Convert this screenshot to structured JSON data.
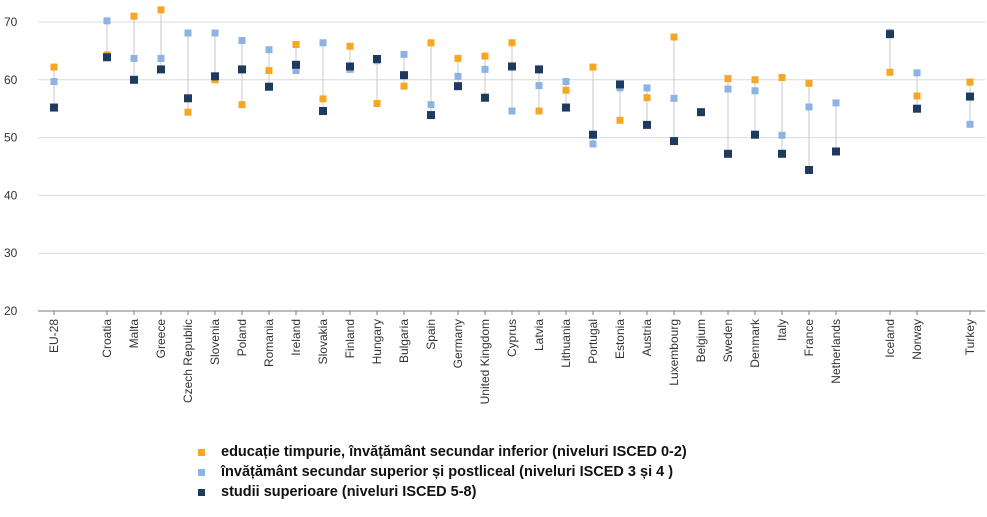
{
  "chart_data": {
    "type": "scatter",
    "categories": [
      "EU-28",
      "Croatia",
      "Malta",
      "Greece",
      "Czech Republic",
      "Slovenia",
      "Poland",
      "Romania",
      "Ireland",
      "Slovakia",
      "Finland",
      "Hungary",
      "Bulgaria",
      "Spain",
      "Germany",
      "United Kingdom",
      "Cyprus",
      "Latvia",
      "Lithuania",
      "Portugal",
      "Estonia",
      "Austria",
      "Luxembourg",
      "Belgium",
      "Sweden",
      "Denmark",
      "Italy",
      "France",
      "Netherlands",
      "Iceland",
      "Norway",
      "Turkey"
    ],
    "series": [
      {
        "name": "educație timpurie, învățământ secundar inferior (niveluri ISCED 0-2)",
        "color": "#f5a623",
        "values": [
          62.2,
          64.3,
          71.0,
          72.1,
          54.4,
          60.0,
          55.7,
          61.6,
          66.1,
          56.7,
          65.8,
          55.9,
          58.9,
          66.4,
          63.7,
          64.1,
          66.4,
          54.6,
          58.2,
          62.2,
          53.0,
          56.9,
          67.4,
          null,
          60.2,
          60.0,
          60.4,
          59.4,
          null,
          61.3,
          57.2,
          59.6
        ]
      },
      {
        "name": "învățământ secundar superior și postliceal (niveluri ISCED 3 și 4 )",
        "color": "#8db3e2",
        "values": [
          59.7,
          70.2,
          63.7,
          63.7,
          68.1,
          68.1,
          66.8,
          65.2,
          61.6,
          66.4,
          61.8,
          63.3,
          64.4,
          55.7,
          60.6,
          61.8,
          54.6,
          59.0,
          59.7,
          48.9,
          58.6,
          58.6,
          56.8,
          54.4,
          58.4,
          58.1,
          50.4,
          55.3,
          56.0,
          68.2,
          61.2,
          52.3
        ]
      },
      {
        "name": "studii superioare (niveluri ISCED 5-8)",
        "color": "#1f3a5f",
        "values": [
          55.2,
          63.9,
          60.0,
          61.8,
          56.8,
          60.6,
          61.8,
          58.8,
          62.6,
          54.6,
          62.3,
          63.6,
          60.8,
          53.9,
          58.9,
          56.9,
          62.3,
          61.8,
          55.2,
          50.5,
          59.2,
          52.2,
          49.4,
          54.4,
          47.2,
          50.5,
          47.2,
          44.4,
          47.6,
          67.9,
          55.0,
          57.1
        ]
      }
    ],
    "y_ticks": [
      20,
      30,
      40,
      50,
      60,
      70
    ],
    "ylim": [
      20,
      73
    ],
    "grid": true,
    "legend_position": "bottom"
  },
  "legend": {
    "items": [
      {
        "label": "educație timpurie, învățământ secundar inferior (niveluri ISCED 0-2)",
        "color": "#f5a623"
      },
      {
        "label": "învățământ secundar superior și postliceal (niveluri ISCED 3 și 4 )",
        "color": "#8db3e2"
      },
      {
        "label": "studii superioare (niveluri ISCED 5-8)",
        "color": "#1f3a5f"
      }
    ]
  }
}
